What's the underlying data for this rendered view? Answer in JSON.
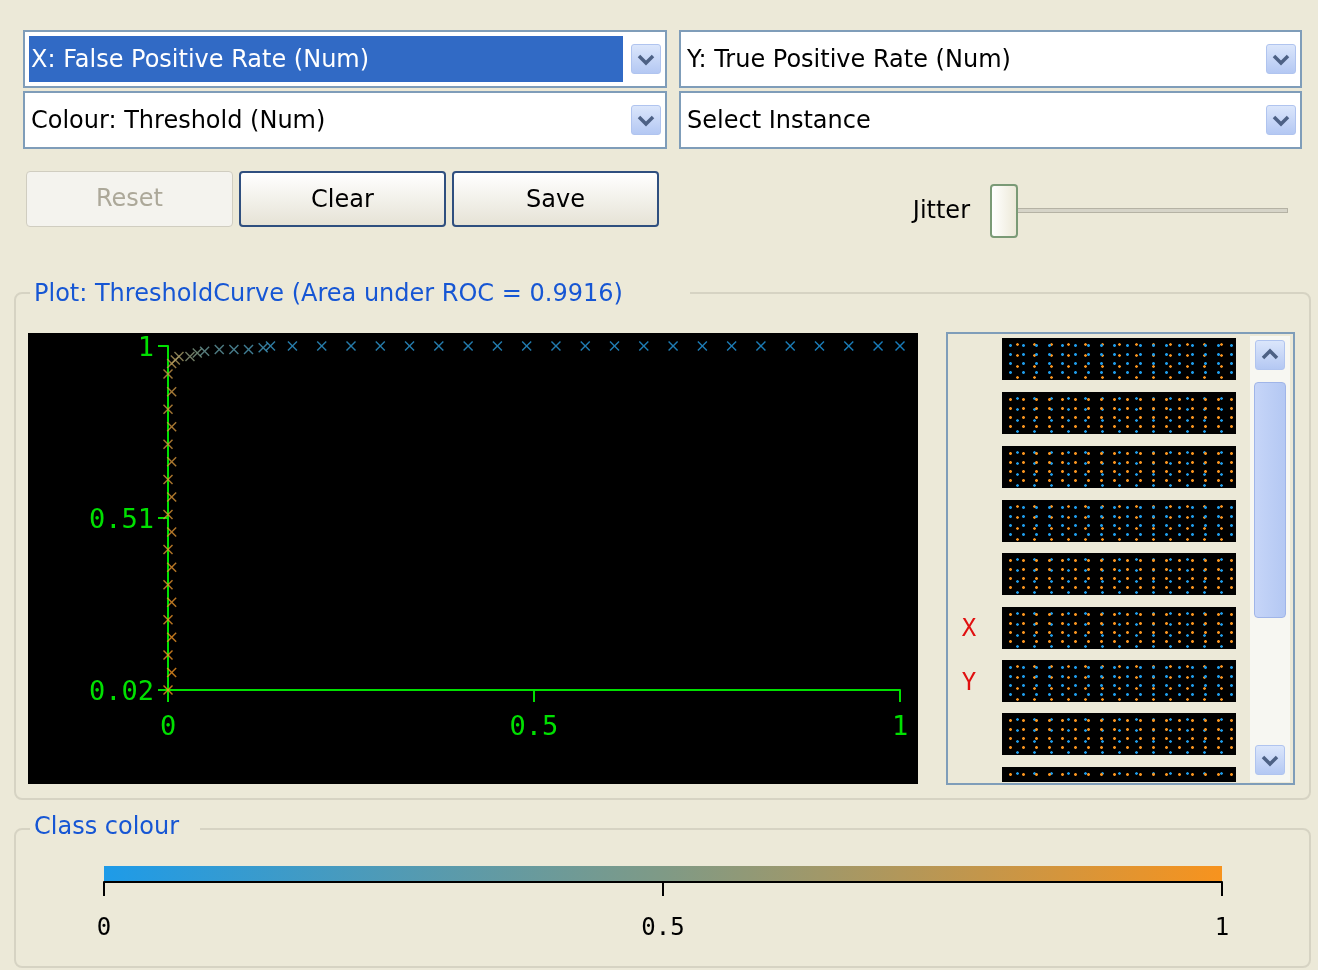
{
  "chart_data": {
    "type": "scatter",
    "title": "Plot: ThresholdCurve (Area under ROC = 0.9916)",
    "clabel": "Class colour",
    "annotations": [
      "X: False Positive Rate (Num)",
      "Y: True Positive Rate (Num)",
      "Colour: Threshold (Num)",
      "Select Instance",
      "Reset",
      "Clear",
      "Save",
      "Jitter",
      "X",
      "Y"
    ],
    "x": [
      0,
      0.005,
      0,
      0.005,
      0,
      0.005,
      0,
      0.005,
      0,
      0.005,
      0,
      0.005,
      0,
      0.005,
      0,
      0.005,
      0,
      0.005,
      0,
      0.005,
      0.01,
      0.015,
      0.03,
      0.04,
      0.05,
      0.07,
      0.09,
      0.11,
      0.13,
      0.14,
      0.17,
      0.21,
      0.25,
      0.29,
      0.33,
      0.37,
      0.41,
      0.45,
      0.49,
      0.53,
      0.57,
      0.61,
      0.65,
      0.69,
      0.73,
      0.77,
      0.81,
      0.85,
      0.89,
      0.93,
      0.97,
      1
    ],
    "values": [
      0.02,
      0.07,
      0.12,
      0.17,
      0.22,
      0.27,
      0.32,
      0.37,
      0.42,
      0.47,
      0.52,
      0.57,
      0.62,
      0.67,
      0.72,
      0.77,
      0.82,
      0.87,
      0.92,
      0.95,
      0.96,
      0.97,
      0.97,
      0.98,
      0.985,
      0.99,
      0.99,
      0.99,
      0.995,
      1,
      1,
      1,
      1,
      1,
      1,
      1,
      1,
      1,
      1,
      1,
      1,
      1,
      1,
      1,
      1,
      1,
      1,
      1,
      1,
      1,
      1,
      1
    ],
    "cvalues": [
      0.99,
      0.98,
      0.97,
      0.96,
      0.95,
      0.94,
      0.93,
      0.92,
      0.91,
      0.9,
      0.89,
      0.88,
      0.87,
      0.86,
      0.85,
      0.84,
      0.83,
      0.82,
      0.81,
      0.75,
      0.7,
      0.65,
      0.55,
      0.5,
      0.4,
      0.35,
      0.3,
      0.25,
      0.2,
      0.15,
      0.1,
      0.1,
      0.09,
      0.09,
      0.08,
      0.08,
      0.07,
      0.07,
      0.06,
      0.06,
      0.05,
      0.05,
      0.04,
      0.04,
      0.03,
      0.03,
      0.02,
      0.02,
      0.01,
      0.01,
      0,
      0
    ],
    "xlim": [
      0,
      1
    ],
    "ylim": [
      0.02,
      1
    ],
    "xticks": [
      0,
      0.5,
      1
    ],
    "yticks": [
      0.02,
      0.51,
      1
    ],
    "clim": [
      0,
      1
    ],
    "cticks": [
      0,
      0.5,
      1
    ],
    "marker": "cross",
    "grid": false
  }
}
